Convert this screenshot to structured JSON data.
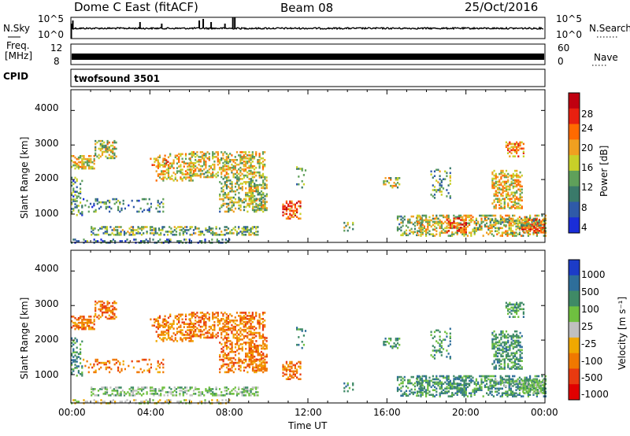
{
  "header": {
    "station": "Dome C East (fitACF)",
    "beam": "Beam 08",
    "date": "25/Oct/2016"
  },
  "top_panels": {
    "nsky": {
      "label": "N.Sky",
      "ticks": [
        "10^5",
        "10^0"
      ],
      "right_label": "N.Search",
      "right_ticks": [
        "10^5",
        "10^0"
      ]
    },
    "freq": {
      "label_line1": "Freq.",
      "label_line2": "[MHz]",
      "ticks": [
        "12",
        "8"
      ],
      "right_label": "Nave",
      "right_ticks": [
        "60",
        "0"
      ]
    },
    "cpid": {
      "label": "CPID",
      "program": "twofsound 3501"
    }
  },
  "chart_data": [
    {
      "type": "heatmap",
      "name": "power",
      "xlabel": "",
      "ylabel": "Slant Range [km]",
      "xlim": [
        0,
        24
      ],
      "ylim": [
        180,
        4600
      ],
      "yticks": [
        "1000",
        "2000",
        "3000",
        "4000"
      ],
      "yticks_values": [
        1000,
        2000,
        3000,
        4000
      ],
      "colorbar": {
        "label": "Power [dB]",
        "ticks": [
          "4",
          "8",
          "12",
          "16",
          "20",
          "24",
          "28"
        ],
        "tick_values": [
          4,
          8,
          12,
          16,
          20,
          24,
          28
        ],
        "range": [
          0,
          32
        ],
        "colors": [
          "#1a2dd8",
          "#2f5aa8",
          "#3a7a6a",
          "#5fa05a",
          "#c8d028",
          "#f0a020",
          "#ff6a00",
          "#e82010",
          "#c00010"
        ]
      }
    },
    {
      "type": "heatmap",
      "name": "velocity",
      "xlabel": "Time UT",
      "ylabel": "Slant Range [km]",
      "xlim": [
        0,
        24
      ],
      "ylim": [
        180,
        4600
      ],
      "yticks": [
        "1000",
        "2000",
        "3000",
        "4000"
      ],
      "yticks_values": [
        1000,
        2000,
        3000,
        4000
      ],
      "xticks": [
        "00:00",
        "04:00",
        "08:00",
        "12:00",
        "16:00",
        "20:00",
        "00:00"
      ],
      "colorbar": {
        "label": "Velocity [m s⁻¹]",
        "ticks": [
          "1000",
          "500",
          "100",
          "25",
          "-25",
          "-100",
          "-500",
          "-1000"
        ],
        "colors": [
          "#1c3cc8",
          "#2e6e9a",
          "#3f8a66",
          "#6fc040",
          "#c0c0c0",
          "#f0a800",
          "#f07800",
          "#e83a10",
          "#e00000"
        ]
      }
    }
  ]
}
